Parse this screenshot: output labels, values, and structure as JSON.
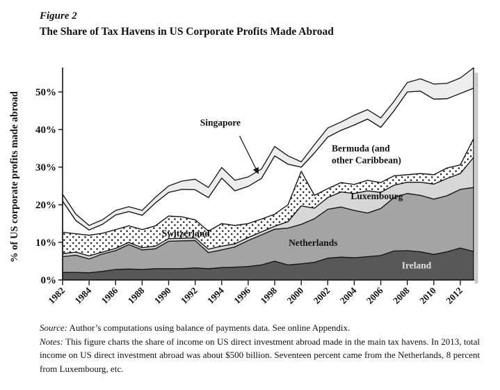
{
  "figure": {
    "label": "Figure 2",
    "title": "The Share of Tax Havens in US Corporate Profits Made Abroad"
  },
  "footer": {
    "source_label": "Source:",
    "source_text": " Author’s computations using balance of payments data. See online Appendix.",
    "notes_label": "Notes:",
    "notes_text": " This figure charts the share of income on US direct investment abroad made in the main tax havens. In 2013, total income on US direct investment abroad was about $500 billion. Seventeen percent came from the Netherlands, 8 percent from Luxembourg, etc."
  },
  "chart_data": {
    "type": "area",
    "stacked": true,
    "title": "The Share of Tax Havens in US Corporate Profits Made Abroad",
    "xlabel": "",
    "ylabel": "% of US corporate profits made abroad",
    "ylim": [
      0,
      57.5
    ],
    "yticks": [
      0,
      10,
      20,
      30,
      40,
      50
    ],
    "ytick_suffix": "%",
    "xticks": [
      1982,
      1984,
      1986,
      1988,
      1990,
      1992,
      1994,
      1996,
      1998,
      2000,
      2002,
      2004,
      2006,
      2008,
      2010,
      2012
    ],
    "grid": false,
    "legend": "labels-inside-areas",
    "x": [
      1982,
      1983,
      1984,
      1985,
      1986,
      1987,
      1988,
      1989,
      1990,
      1991,
      1992,
      1993,
      1994,
      1995,
      1996,
      1997,
      1998,
      1999,
      2000,
      2001,
      2002,
      2003,
      2004,
      2005,
      2006,
      2007,
      2008,
      2009,
      2010,
      2011,
      2012,
      2013
    ],
    "series": [
      {
        "name": "Ireland",
        "fill": "#585858",
        "values": [
          2.0,
          2.0,
          1.9,
          2.3,
          2.8,
          2.9,
          2.8,
          3.0,
          3.0,
          3.0,
          3.2,
          3.0,
          3.3,
          3.4,
          3.6,
          4.0,
          5.0,
          4.0,
          4.3,
          4.7,
          5.8,
          6.1,
          5.9,
          6.2,
          6.5,
          7.7,
          7.8,
          7.5,
          6.8,
          7.5,
          8.5,
          7.6
        ]
      },
      {
        "name": "Netherlands",
        "fill": "#a4a4a4",
        "values": [
          4.2,
          4.6,
          3.7,
          4.6,
          5.0,
          6.5,
          5.2,
          5.3,
          7.3,
          7.4,
          7.3,
          4.3,
          4.7,
          5.4,
          6.9,
          8.0,
          8.5,
          9.8,
          10.5,
          11.6,
          13.0,
          13.3,
          12.6,
          11.6,
          12.5,
          14.2,
          15.2,
          15.0,
          14.7,
          14.9,
          15.6,
          17.0
        ]
      },
      {
        "name": "Luxembourg",
        "fill": "#d7d7d7",
        "values": [
          0.8,
          0.8,
          0.8,
          0.5,
          0.6,
          0.6,
          0.6,
          0.7,
          0.7,
          0.7,
          0.7,
          0.9,
          1.0,
          0.8,
          0.8,
          0.8,
          0.8,
          1.7,
          4.9,
          2.8,
          3.1,
          4.0,
          4.5,
          5.9,
          4.3,
          3.3,
          3.0,
          3.5,
          4.0,
          4.6,
          4.2,
          8.0
        ]
      },
      {
        "name": "Switzerland",
        "fill": "dots",
        "values": [
          5.7,
          4.9,
          5.5,
          5.0,
          5.0,
          4.4,
          4.8,
          5.4,
          6.0,
          5.7,
          4.8,
          4.8,
          6.0,
          4.9,
          3.7,
          3.4,
          3.2,
          4.5,
          9.2,
          3.4,
          2.4,
          2.5,
          2.4,
          2.8,
          2.6,
          2.5,
          2.0,
          2.3,
          2.5,
          2.8,
          2.3,
          5.0
        ]
      },
      {
        "name": "Bermuda (and other Caribbean)",
        "fill": "#ffffff",
        "values": [
          8.3,
          3.5,
          1.4,
          2.4,
          3.9,
          3.8,
          3.8,
          6.1,
          6.3,
          7.3,
          8.0,
          8.9,
          12.1,
          9.2,
          9.9,
          10.8,
          15.5,
          10.8,
          1.1,
          11.3,
          13.7,
          13.9,
          15.8,
          16.3,
          14.7,
          17.3,
          22.0,
          21.9,
          20.1,
          18.4,
          19.0,
          13.4
        ]
      },
      {
        "name": "Singapore",
        "fill": "#ededed",
        "values": [
          1.8,
          1.7,
          1.2,
          1.2,
          1.2,
          1.3,
          1.3,
          1.5,
          1.7,
          2.2,
          2.8,
          2.7,
          2.8,
          2.8,
          2.5,
          2.5,
          2.5,
          2.2,
          1.4,
          2.2,
          2.4,
          2.2,
          2.6,
          2.5,
          2.5,
          2.5,
          2.5,
          3.3,
          4.0,
          4.1,
          4.1,
          5.4
        ]
      }
    ],
    "annotations": [
      {
        "id": "singapore-label",
        "text": "Singapore",
        "year": 1993.9,
        "pct": 41.0,
        "anchor": "middle",
        "color": "#111111"
      },
      {
        "id": "switzerland-label",
        "text": "Switzerland",
        "year": 1991.3,
        "pct": 11.6,
        "anchor": "middle",
        "color": "#111111"
      },
      {
        "id": "bermuda-label-line1",
        "text": "Bermuda (and",
        "year": 2002.3,
        "pct": 34.2,
        "anchor": "start",
        "color": "#111111"
      },
      {
        "id": "bermuda-label-line2",
        "text": "other Caribbean)",
        "year": 2002.3,
        "pct": 31.0,
        "anchor": "start",
        "color": "#111111"
      },
      {
        "id": "luxembourg-label",
        "text": "Luxembourg",
        "year": 2005.7,
        "pct": 21.5,
        "anchor": "middle",
        "color": "#111111"
      },
      {
        "id": "netherlands-label",
        "text": "Netherlands",
        "year": 2000.9,
        "pct": 9.1,
        "anchor": "middle",
        "color": "#111111"
      },
      {
        "id": "ireland-label",
        "text": "Ireland",
        "year": 2008.7,
        "pct": 3.1,
        "anchor": "middle",
        "color": "#e2e2e2"
      }
    ],
    "arrow": {
      "from": {
        "year": 1995.35,
        "pct": 38.3
      },
      "to": {
        "year": 1996.75,
        "pct": 28.4
      }
    }
  }
}
